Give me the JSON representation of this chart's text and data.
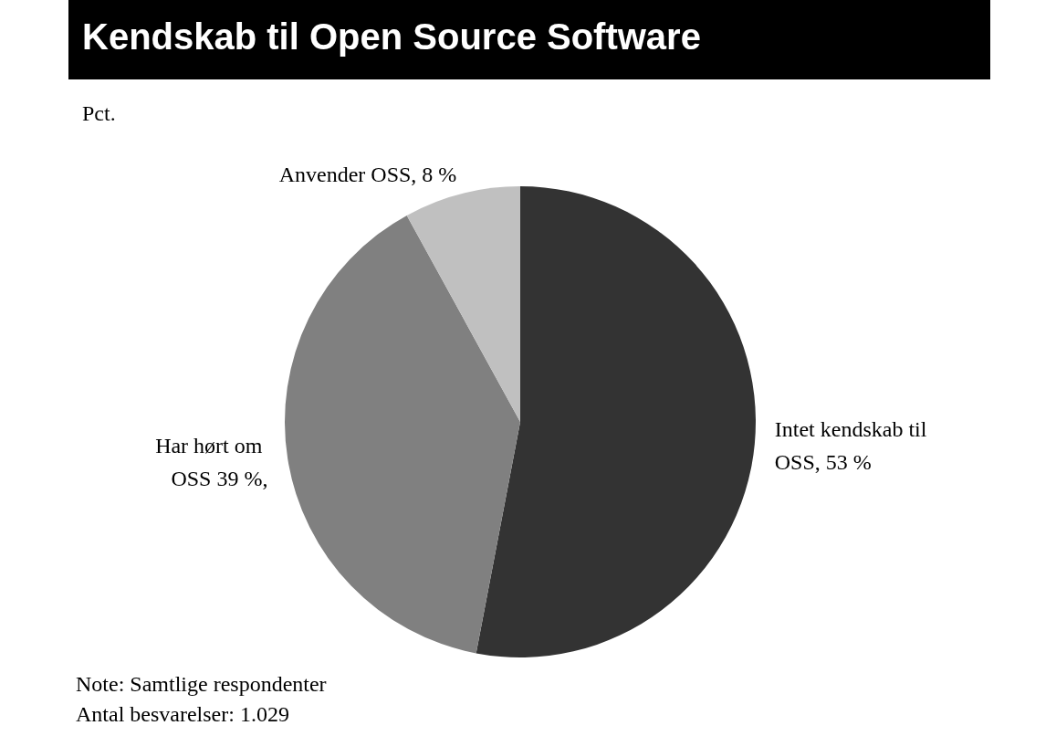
{
  "chart_data": {
    "type": "pie",
    "title": "Kendskab til Open Source Software",
    "subtitle": "Pct.",
    "categories": [
      "Intet kendskab til OSS",
      "Har hørt om OSS",
      "Anvender OSS"
    ],
    "value_labels": [
      "53 %",
      "39 %,",
      "8 %"
    ],
    "values": [
      53,
      39,
      8
    ],
    "colors": [
      "#333333",
      "#808080",
      "#c0c0c0"
    ],
    "annotations": [
      "Note: Samtlige respondenter",
      "Antal besvarelser: 1.029"
    ]
  }
}
